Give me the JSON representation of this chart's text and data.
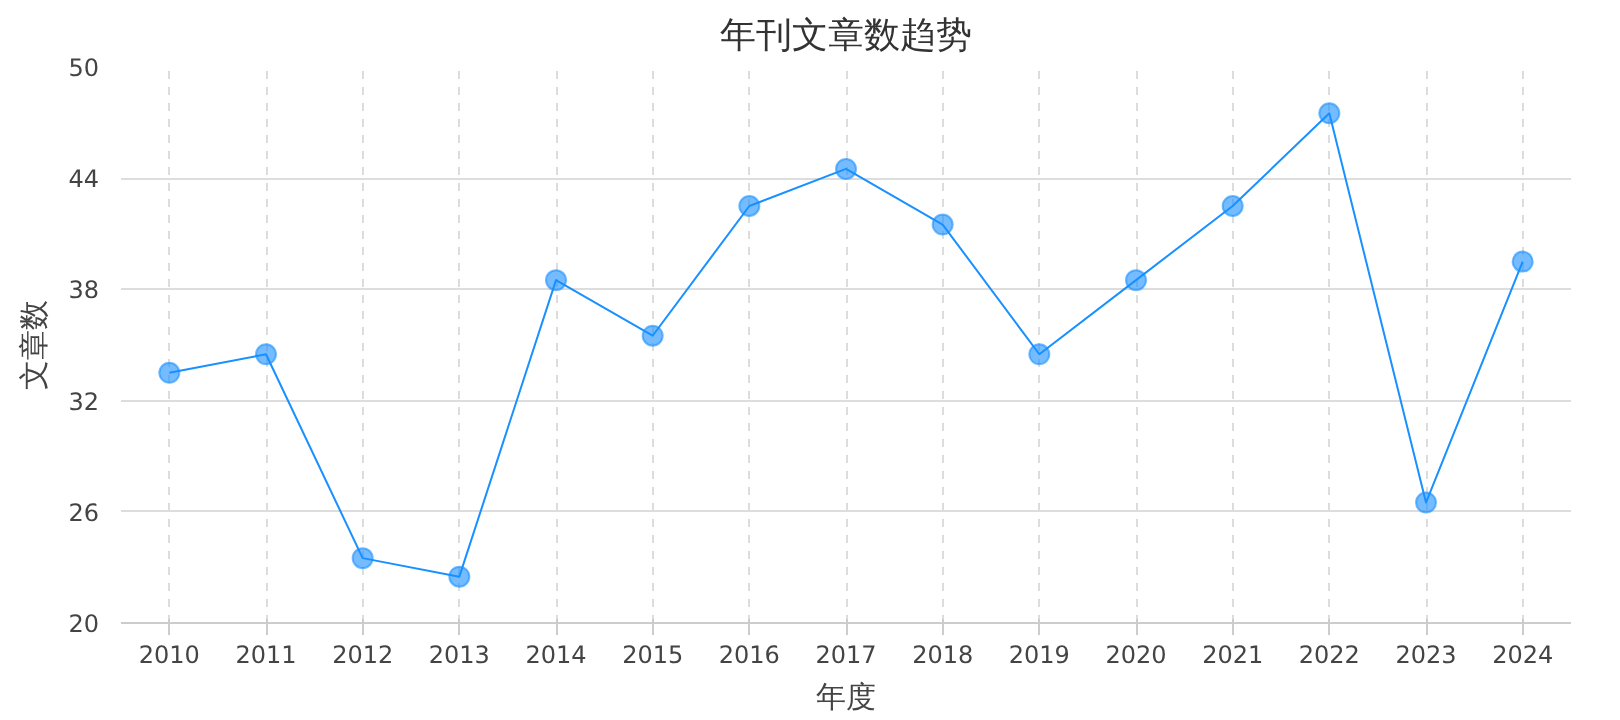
{
  "chart_data": {
    "type": "line",
    "title": "年刊文章数趋势",
    "xlabel": "年度",
    "ylabel": "文章数",
    "categories": [
      "2010",
      "2011",
      "2012",
      "2013",
      "2014",
      "2015",
      "2016",
      "2017",
      "2018",
      "2019",
      "2020",
      "2021",
      "2022",
      "2023",
      "2024"
    ],
    "series": [
      {
        "color": "#1890ff",
        "values": [
          33.5,
          34.5,
          23.5,
          22.5,
          38.5,
          35.5,
          42.5,
          44.5,
          41.5,
          34.5,
          38.5,
          42.5,
          47.5,
          26.5,
          39.5
        ]
      }
    ],
    "ylim": [
      20,
      50
    ],
    "yticks": [
      20,
      26,
      32,
      38,
      44,
      50
    ],
    "grid": true,
    "marker": "circle",
    "line_style": "solid"
  }
}
